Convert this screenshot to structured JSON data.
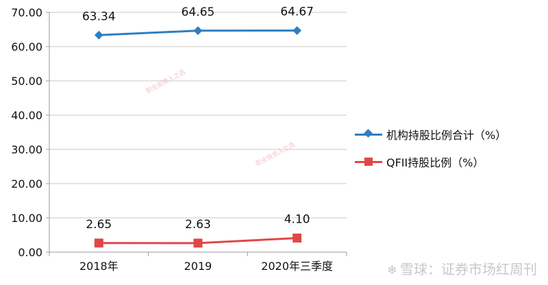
{
  "chart_data": {
    "type": "line",
    "categories": [
      "2018年",
      "2019",
      "2020年三季度"
    ],
    "series": [
      {
        "name": "机构持股比例合计（%）",
        "values": [
          63.34,
          64.65,
          64.67
        ],
        "color": "#2e7fc1",
        "marker": "diamond"
      },
      {
        "name": "QFII持股比例（%）",
        "values": [
          2.65,
          2.63,
          4.1
        ],
        "color": "#e04848",
        "marker": "square"
      }
    ],
    "data_labels": [
      [
        "63.34",
        "64.65",
        "64.67"
      ],
      [
        "2.65",
        "2.63",
        "4.10"
      ]
    ],
    "ylim": [
      0,
      70
    ],
    "yticks": [
      "0.00",
      "10.00",
      "20.00",
      "30.00",
      "40.00",
      "50.00",
      "60.00",
      "70.00"
    ],
    "grid": true,
    "legend_position": "right"
  },
  "watermark": {
    "text": "雪球：证券市场红周刊",
    "icon": "snowball-logo-icon"
  },
  "stamps": [
    "职业投资人之选",
    "职业投资人之选"
  ]
}
